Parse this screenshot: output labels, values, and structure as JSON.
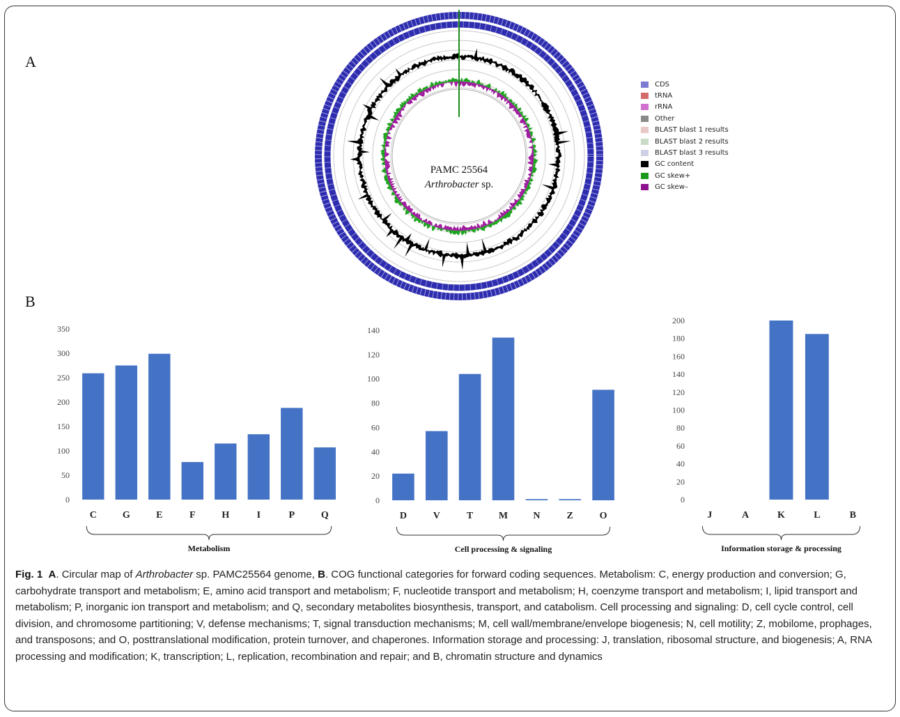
{
  "panel_a_label": "A",
  "panel_b_label": "B",
  "genome_map": {
    "center_line1": "PAMC 25564",
    "center_line2_italic": "Arthrobacter",
    "center_line2_rest": " sp.",
    "colors": {
      "cds": "#2e2db0",
      "gc_content": "#000000",
      "gc_skew_plus": "#1fa51f",
      "gc_skew_minus": "#a01ea0",
      "ring": "#c8c8c8"
    }
  },
  "legend": [
    {
      "label": "CDS",
      "color": "#7b7bd1"
    },
    {
      "label": "tRNA",
      "color": "#d46a6a"
    },
    {
      "label": "rRNA",
      "color": "#d070d0"
    },
    {
      "label": "Other",
      "color": "#8a8a8a"
    },
    {
      "label": "BLAST blast 1 results",
      "color": "#e8c8c8"
    },
    {
      "label": "BLAST blast 2 results",
      "color": "#c8dcc8"
    },
    {
      "label": "BLAST blast 3 results",
      "color": "#cfcfe6"
    },
    {
      "label": "GC content",
      "color": "#000000"
    },
    {
      "label": "GC skew+",
      "color": "#1a9a1a"
    },
    {
      "label": "GC skew–",
      "color": "#8e128e"
    }
  ],
  "bar_color": "#4472c4",
  "chart_data": [
    {
      "type": "bar",
      "categories": [
        "C",
        "G",
        "E",
        "F",
        "H",
        "I",
        "P",
        "Q"
      ],
      "values": [
        259,
        275,
        299,
        77,
        115,
        134,
        188,
        107
      ],
      "ylim": [
        0,
        350
      ],
      "yticks": [
        "0",
        "50",
        "100",
        "150",
        "200",
        "250",
        "300",
        "350"
      ],
      "group_label": "Metabolism"
    },
    {
      "type": "bar",
      "categories": [
        "D",
        "V",
        "T",
        "M",
        "N",
        "Z",
        "O"
      ],
      "values": [
        22,
        57,
        104,
        134,
        1,
        1,
        91
      ],
      "ylim": [
        0,
        140
      ],
      "yticks": [
        "0",
        "20",
        "40",
        "60",
        "80",
        "100",
        "120",
        "140"
      ],
      "group_label": "Cell processing & signaling"
    },
    {
      "type": "bar",
      "categories": [
        "J",
        "A",
        "K",
        "L",
        "B"
      ],
      "values": [
        0,
        0,
        200,
        185,
        0
      ],
      "ylim": [
        0,
        200
      ],
      "yticks": [
        "0",
        "20",
        "40",
        "60",
        "80",
        "100",
        "120",
        "140",
        "160",
        "180",
        "200"
      ],
      "group_label": "Information  storage & processing"
    }
  ],
  "caption": {
    "fig_no": "Fig. 1",
    "p1_bold": "A",
    "p2": ". Circular map of ",
    "p3_italic": "Arthrobacter",
    "p4": " sp. PAMC25564 genome, ",
    "p5_bold": "B",
    "p6": ". COG functional categories for forward coding sequences. Metabolism: C, energy production and conversion; G, carbohydrate transport and metabolism; E, amino acid transport and metabolism; F, nucleotide transport and metabolism; H, coenzyme transport and metabolism; I, lipid transport and metabolism; P, inorganic ion transport and metabolism; and Q, secondary metabolites biosynthesis, transport, and catabolism. Cell processing and signaling: D, cell cycle control, cell division, and chromosome partitioning; V, defense mechanisms; T, signal transduction mechanisms; M, cell wall/membrane/envelope biogenesis; N, cell motility; Z, mobilome, prophages, and transposons; and O, posttranslational modification, protein turnover, and chaperones. Information storage and processing: J, translation, ribosomal structure, and biogenesis; A, RNA processing and modification; K, transcription; L, replication, recombination and repair; and B, chromatin structure and dynamics"
  }
}
